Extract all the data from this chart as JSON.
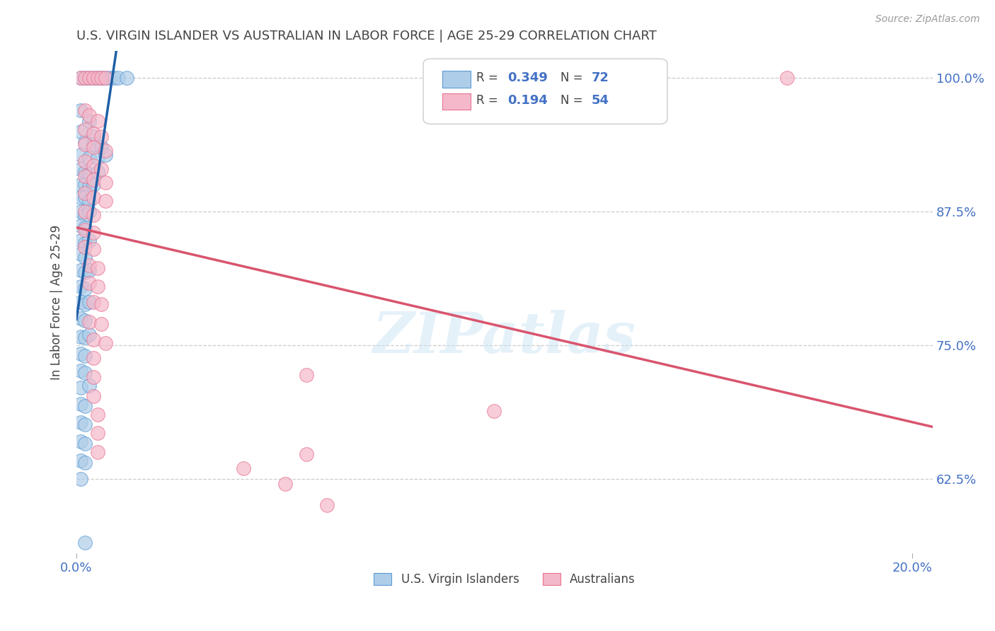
{
  "title": "U.S. VIRGIN ISLANDER VS AUSTRALIAN IN LABOR FORCE | AGE 25-29 CORRELATION CHART",
  "source": "Source: ZipAtlas.com",
  "ylabel": "In Labor Force | Age 25-29",
  "yticks": [
    62.5,
    75.0,
    87.5,
    100.0
  ],
  "ytick_labels": [
    "62.5%",
    "75.0%",
    "87.5%",
    "100.0%"
  ],
  "legend_blue_r": "0.349",
  "legend_blue_n": "72",
  "legend_pink_r": "0.194",
  "legend_pink_n": "54",
  "blue_color": "#aecde8",
  "pink_color": "#f4b8ca",
  "blue_edge_color": "#5b9bd5",
  "pink_edge_color": "#e8728f",
  "blue_line_color": "#1f5fa6",
  "pink_line_color": "#d9546e",
  "blue_scatter": [
    [
      0.001,
      1.0
    ],
    [
      0.002,
      1.0
    ],
    [
      0.003,
      1.0
    ],
    [
      0.004,
      1.0
    ],
    [
      0.005,
      1.0
    ],
    [
      0.006,
      1.0
    ],
    [
      0.007,
      1.0
    ],
    [
      0.008,
      1.0
    ],
    [
      0.009,
      1.0
    ],
    [
      0.01,
      1.0
    ],
    [
      0.012,
      1.0
    ],
    [
      0.001,
      0.97
    ],
    [
      0.003,
      0.96
    ],
    [
      0.001,
      0.95
    ],
    [
      0.004,
      0.945
    ],
    [
      0.002,
      0.94
    ],
    [
      0.004,
      0.938
    ],
    [
      0.006,
      0.935
    ],
    [
      0.001,
      0.928
    ],
    [
      0.003,
      0.925
    ],
    [
      0.005,
      0.925
    ],
    [
      0.007,
      0.928
    ],
    [
      0.001,
      0.915
    ],
    [
      0.002,
      0.912
    ],
    [
      0.003,
      0.91
    ],
    [
      0.005,
      0.912
    ],
    [
      0.001,
      0.9
    ],
    [
      0.002,
      0.9
    ],
    [
      0.003,
      0.898
    ],
    [
      0.004,
      0.9
    ],
    [
      0.001,
      0.888
    ],
    [
      0.002,
      0.888
    ],
    [
      0.003,
      0.885
    ],
    [
      0.001,
      0.875
    ],
    [
      0.002,
      0.872
    ],
    [
      0.003,
      0.875
    ],
    [
      0.001,
      0.862
    ],
    [
      0.002,
      0.86
    ],
    [
      0.001,
      0.848
    ],
    [
      0.002,
      0.845
    ],
    [
      0.003,
      0.848
    ],
    [
      0.001,
      0.835
    ],
    [
      0.002,
      0.832
    ],
    [
      0.001,
      0.82
    ],
    [
      0.002,
      0.818
    ],
    [
      0.003,
      0.82
    ],
    [
      0.001,
      0.805
    ],
    [
      0.002,
      0.803
    ],
    [
      0.001,
      0.79
    ],
    [
      0.002,
      0.788
    ],
    [
      0.003,
      0.79
    ],
    [
      0.001,
      0.775
    ],
    [
      0.002,
      0.773
    ],
    [
      0.001,
      0.758
    ],
    [
      0.002,
      0.757
    ],
    [
      0.003,
      0.76
    ],
    [
      0.001,
      0.742
    ],
    [
      0.002,
      0.74
    ],
    [
      0.001,
      0.726
    ],
    [
      0.002,
      0.724
    ],
    [
      0.001,
      0.71
    ],
    [
      0.003,
      0.712
    ],
    [
      0.001,
      0.695
    ],
    [
      0.002,
      0.693
    ],
    [
      0.001,
      0.678
    ],
    [
      0.002,
      0.676
    ],
    [
      0.001,
      0.66
    ],
    [
      0.002,
      0.658
    ],
    [
      0.001,
      0.642
    ],
    [
      0.002,
      0.64
    ],
    [
      0.001,
      0.625
    ],
    [
      0.002,
      0.565
    ]
  ],
  "pink_scatter": [
    [
      0.001,
      1.0
    ],
    [
      0.002,
      1.0
    ],
    [
      0.003,
      1.0
    ],
    [
      0.004,
      1.0
    ],
    [
      0.005,
      1.0
    ],
    [
      0.006,
      1.0
    ],
    [
      0.007,
      1.0
    ],
    [
      0.17,
      1.0
    ],
    [
      0.002,
      0.97
    ],
    [
      0.003,
      0.965
    ],
    [
      0.005,
      0.96
    ],
    [
      0.002,
      0.952
    ],
    [
      0.004,
      0.948
    ],
    [
      0.006,
      0.945
    ],
    [
      0.002,
      0.938
    ],
    [
      0.004,
      0.935
    ],
    [
      0.007,
      0.932
    ],
    [
      0.002,
      0.922
    ],
    [
      0.004,
      0.918
    ],
    [
      0.006,
      0.915
    ],
    [
      0.002,
      0.908
    ],
    [
      0.004,
      0.905
    ],
    [
      0.007,
      0.902
    ],
    [
      0.002,
      0.892
    ],
    [
      0.004,
      0.888
    ],
    [
      0.007,
      0.885
    ],
    [
      0.002,
      0.875
    ],
    [
      0.004,
      0.872
    ],
    [
      0.002,
      0.858
    ],
    [
      0.004,
      0.855
    ],
    [
      0.002,
      0.842
    ],
    [
      0.004,
      0.84
    ],
    [
      0.003,
      0.825
    ],
    [
      0.005,
      0.822
    ],
    [
      0.003,
      0.808
    ],
    [
      0.005,
      0.805
    ],
    [
      0.004,
      0.79
    ],
    [
      0.006,
      0.788
    ],
    [
      0.003,
      0.772
    ],
    [
      0.006,
      0.77
    ],
    [
      0.004,
      0.755
    ],
    [
      0.007,
      0.752
    ],
    [
      0.004,
      0.738
    ],
    [
      0.004,
      0.72
    ],
    [
      0.055,
      0.722
    ],
    [
      0.004,
      0.702
    ],
    [
      0.005,
      0.685
    ],
    [
      0.1,
      0.688
    ],
    [
      0.005,
      0.668
    ],
    [
      0.005,
      0.65
    ],
    [
      0.055,
      0.648
    ],
    [
      0.04,
      0.635
    ],
    [
      0.05,
      0.62
    ],
    [
      0.06,
      0.6
    ]
  ],
  "xmin": 0.0,
  "xmax": 0.205,
  "ymin": 0.555,
  "ymax": 1.025,
  "background_color": "#ffffff",
  "grid_color": "#cccccc",
  "title_color": "#444444",
  "axis_label_color": "#444444",
  "tick_color": "#4472c4",
  "legend_r_color": "#4472c4",
  "watermark_text": "ZIPatlas"
}
